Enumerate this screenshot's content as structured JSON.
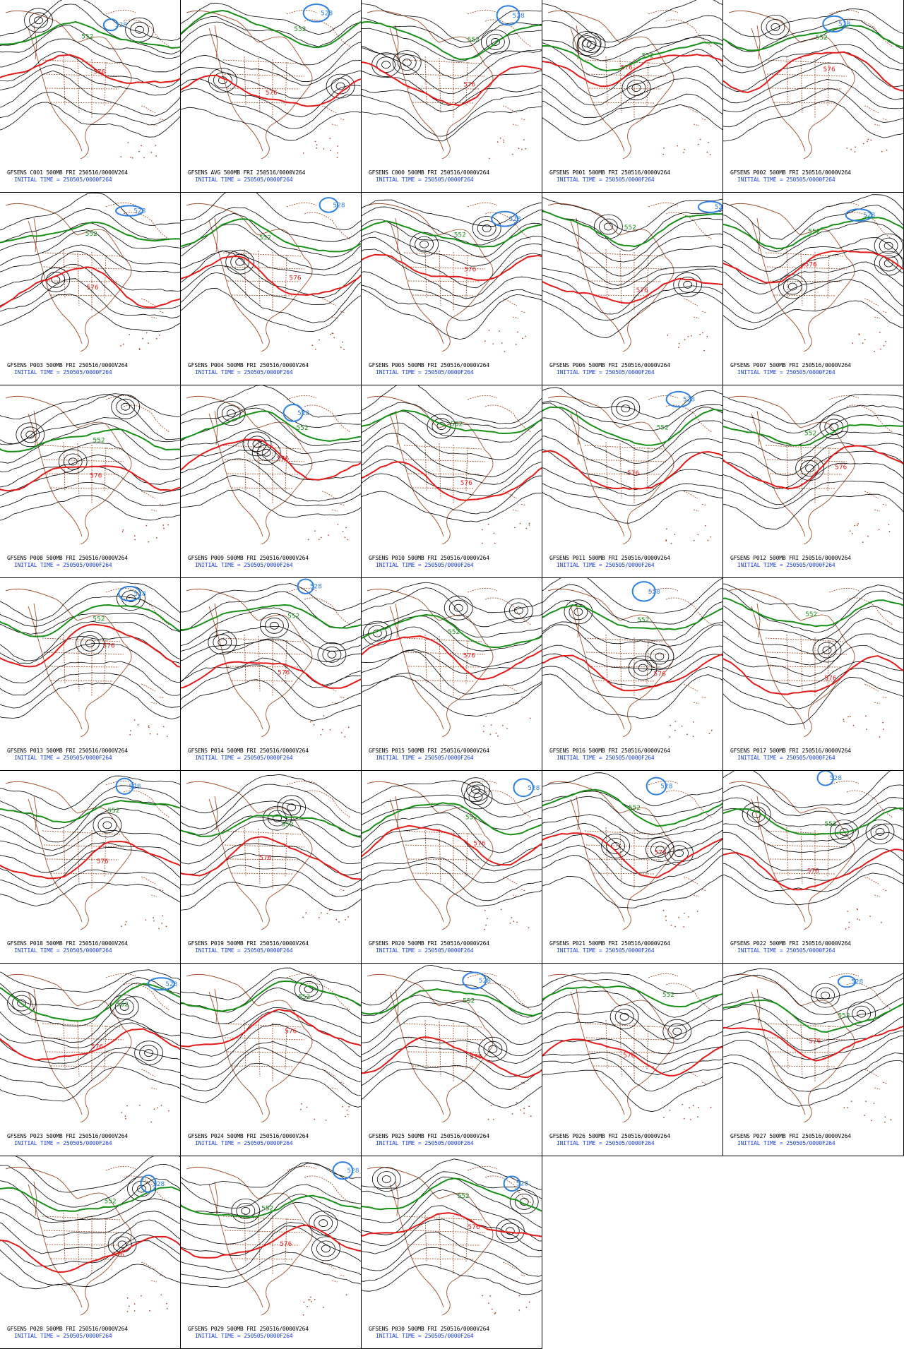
{
  "colors": {
    "contour": "#000000",
    "line_552": "#178f17",
    "line_576": "#e31a1a",
    "line_528": "#2e7fe0",
    "geography": "#a0522d",
    "caption_valid": "#000000",
    "caption_initial": "#1a3fd8"
  },
  "contour_labels": {
    "green": "552",
    "red": "576",
    "blue": "528"
  },
  "panels": [
    {
      "name": "GFSENS C001",
      "valid": "GFSENS C001 500MB FRI 250516/0000V264",
      "initial": "INITIAL TIME = 250505/0000F264"
    },
    {
      "name": "GFSENS AVG",
      "valid": "GFSENS AVG 500MB FRI 250516/0000V264",
      "initial": "INITIAL TIME = 250505/0000F264"
    },
    {
      "name": "GFSENS C000",
      "valid": "GFSENS C000 500MB FRI 250516/0000V264",
      "initial": "INITIAL TIME = 250505/0000F264"
    },
    {
      "name": "GFSENS P001",
      "valid": "GFSENS P001 500MB FRI 250516/0000V264",
      "initial": "INITIAL TIME = 250505/0000F264"
    },
    {
      "name": "GFSENS P002",
      "valid": "GFSENS P002 500MB FRI 250516/0000V264",
      "initial": "INITIAL TIME = 250505/0000F264"
    },
    {
      "name": "GFSENS P003",
      "valid": "GFSENS P003 500MB FRI 250516/0000V264",
      "initial": "INITIAL TIME = 250505/0000F264"
    },
    {
      "name": "GFSENS P004",
      "valid": "GFSENS P004 500MB FRI 250516/0000V264",
      "initial": "INITIAL TIME = 250505/0000F264"
    },
    {
      "name": "GFSENS P005",
      "valid": "GFSENS P005 500MB FRI 250516/0000V264",
      "initial": "INITIAL TIME = 250505/0000F264"
    },
    {
      "name": "GFSENS P006",
      "valid": "GFSENS P006 500MB FRI 250516/0000V264",
      "initial": "INITIAL TIME = 250505/0000F264"
    },
    {
      "name": "GFSENS P007",
      "valid": "GFSENS P007 500MB FRI 250516/0000V264",
      "initial": "INITIAL TIME = 250505/0000F264"
    },
    {
      "name": "GFSENS P008",
      "valid": "GFSENS P008 500MB FRI 250516/0000V264",
      "initial": "INITIAL TIME = 250505/0000F264"
    },
    {
      "name": "GFSENS P009",
      "valid": "GFSENS P009 500MB FRI 250516/0000V264",
      "initial": "INITIAL TIME = 250505/0000F264"
    },
    {
      "name": "GFSENS P010",
      "valid": "GFSENS P010 500MB FRI 250516/0000V264",
      "initial": "INITIAL TIME = 250505/0000F264"
    },
    {
      "name": "GFSENS P011",
      "valid": "GFSENS P011 500MB FRI 250516/0000V264",
      "initial": "INITIAL TIME = 250505/0000F264"
    },
    {
      "name": "GFSENS P012",
      "valid": "GFSENS P012 500MB FRI 250516/0000V264",
      "initial": "INITIAL TIME = 250505/0000F264"
    },
    {
      "name": "GFSENS P013",
      "valid": "GFSENS P013 500MB FRI 250516/0000V264",
      "initial": "INITIAL TIME = 250505/0000F264"
    },
    {
      "name": "GFSENS P014",
      "valid": "GFSENS P014 500MB FRI 250516/0000V264",
      "initial": "INITIAL TIME = 250505/0000F264"
    },
    {
      "name": "GFSENS P015",
      "valid": "GFSENS P015 500MB FRI 250516/0000V264",
      "initial": "INITIAL TIME = 250505/0000F264"
    },
    {
      "name": "GFSENS P016",
      "valid": "GFSENS P016 500MB FRI 250516/0000V264",
      "initial": "INITIAL TIME = 250505/0000F264"
    },
    {
      "name": "GFSENS P017",
      "valid": "GFSENS P017 500MB FRI 250516/0000V264",
      "initial": "INITIAL TIME = 250505/0000F264"
    },
    {
      "name": "GFSENS P018",
      "valid": "GFSENS P018 500MB FRI 250516/0000V264",
      "initial": "INITIAL TIME = 250505/0000F264"
    },
    {
      "name": "GFSENS P019",
      "valid": "GFSENS P019 500MB FRI 250516/0000V264",
      "initial": "INITIAL TIME = 250505/0000F264"
    },
    {
      "name": "GFSENS P020",
      "valid": "GFSENS P020 500MB FRI 250516/0000V264",
      "initial": "INITIAL TIME = 250505/0000F264"
    },
    {
      "name": "GFSENS P021",
      "valid": "GFSENS P021 500MB FRI 250516/0000V264",
      "initial": "INITIAL TIME = 250505/0000F264"
    },
    {
      "name": "GFSENS P022",
      "valid": "GFSENS P022 500MB FRI 250516/0000V264",
      "initial": "INITIAL TIME = 250505/0000F264"
    },
    {
      "name": "GFSENS P023",
      "valid": "GFSENS P023 500MB FRI 250516/0000V264",
      "initial": "INITIAL TIME = 250505/0000F264"
    },
    {
      "name": "GFSENS P024",
      "valid": "GFSENS P024 500MB FRI 250516/0000V264",
      "initial": "INITIAL TIME = 250505/0000F264"
    },
    {
      "name": "GFSENS P025",
      "valid": "GFSENS P025 500MB FRI 250516/0000V264",
      "initial": "INITIAL TIME = 250505/0000F264"
    },
    {
      "name": "GFSENS P026",
      "valid": "GFSENS P026 500MB FRI 250516/0000V264",
      "initial": "INITIAL TIME = 250505/0000F264"
    },
    {
      "name": "GFSENS P027",
      "valid": "GFSENS P027 500MB FRI 250516/0000V264",
      "initial": "INITIAL TIME = 250505/0000F264"
    },
    {
      "name": "GFSENS P028",
      "valid": "GFSENS P028 500MB FRI 250516/0000V264",
      "initial": "INITIAL TIME = 250505/0000F264"
    },
    {
      "name": "GFSENS P029",
      "valid": "GFSENS P029 500MB FRI 250516/0000V264",
      "initial": "INITIAL TIME = 250505/0000F264"
    },
    {
      "name": "GFSENS P030",
      "valid": "GFSENS P030 500MB FRI 250516/0000V264",
      "initial": "INITIAL TIME = 250505/0000F264"
    }
  ]
}
